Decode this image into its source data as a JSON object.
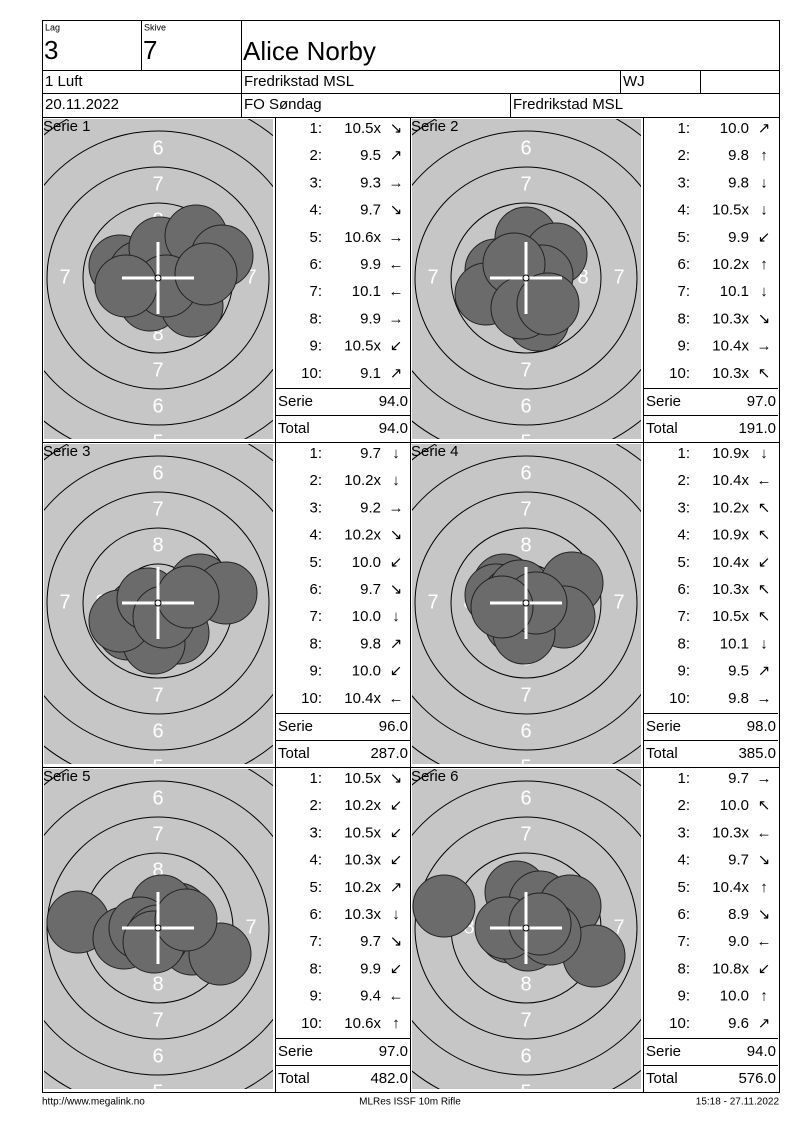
{
  "header": {
    "lag_label": "Lag",
    "lag": "3",
    "skive_label": "Skive",
    "skive": "7",
    "name": "Alice Norby",
    "class": "1 Luft",
    "club": "Fredrikstad MSL",
    "category": "WJ",
    "date": "20.11.2022",
    "event": "FO Søndag",
    "venue": "Fredrikstad MSL"
  },
  "target": {
    "ring_labels": [
      "8",
      "7",
      "6",
      "5"
    ]
  },
  "series": [
    {
      "title": "Serie 1",
      "shots": [
        {
          "n": "1:",
          "score": "10.5x",
          "arrow": "↘"
        },
        {
          "n": "2:",
          "score": "9.5",
          "arrow": "↗"
        },
        {
          "n": "3:",
          "score": "9.3",
          "arrow": "→"
        },
        {
          "n": "4:",
          "score": "9.7",
          "arrow": "↘"
        },
        {
          "n": "5:",
          "score": "10.6x",
          "arrow": "→"
        },
        {
          "n": "6:",
          "score": "9.9",
          "arrow": "←"
        },
        {
          "n": "7:",
          "score": "10.1",
          "arrow": "←"
        },
        {
          "n": "8:",
          "score": "9.9",
          "arrow": "→"
        },
        {
          "n": "9:",
          "score": "10.5x",
          "arrow": "↙"
        },
        {
          "n": "10:",
          "score": "9.1",
          "arrow": "↗"
        }
      ],
      "serie_label": "Serie",
      "serie": "94.0",
      "total_label": "Total",
      "total": "94.0"
    },
    {
      "title": "Serie 2",
      "shots": [
        {
          "n": "1:",
          "score": "10.0",
          "arrow": "↗"
        },
        {
          "n": "2:",
          "score": "9.8",
          "arrow": "↑"
        },
        {
          "n": "3:",
          "score": "9.8",
          "arrow": "↓"
        },
        {
          "n": "4:",
          "score": "10.5x",
          "arrow": "↓"
        },
        {
          "n": "5:",
          "score": "9.9",
          "arrow": "↙"
        },
        {
          "n": "6:",
          "score": "10.2x",
          "arrow": "↑"
        },
        {
          "n": "7:",
          "score": "10.1",
          "arrow": "↓"
        },
        {
          "n": "8:",
          "score": "10.3x",
          "arrow": "↘"
        },
        {
          "n": "9:",
          "score": "10.4x",
          "arrow": "→"
        },
        {
          "n": "10:",
          "score": "10.3x",
          "arrow": "↖"
        }
      ],
      "serie_label": "Serie",
      "serie": "97.0",
      "total_label": "Total",
      "total": "191.0"
    },
    {
      "title": "Serie 3",
      "shots": [
        {
          "n": "1:",
          "score": "9.7",
          "arrow": "↓"
        },
        {
          "n": "2:",
          "score": "10.2x",
          "arrow": "↓"
        },
        {
          "n": "3:",
          "score": "9.2",
          "arrow": "→"
        },
        {
          "n": "4:",
          "score": "10.2x",
          "arrow": "↘"
        },
        {
          "n": "5:",
          "score": "10.0",
          "arrow": "↙"
        },
        {
          "n": "6:",
          "score": "9.7",
          "arrow": "↘"
        },
        {
          "n": "7:",
          "score": "10.0",
          "arrow": "↓"
        },
        {
          "n": "8:",
          "score": "9.8",
          "arrow": "↗"
        },
        {
          "n": "9:",
          "score": "10.0",
          "arrow": "↙"
        },
        {
          "n": "10:",
          "score": "10.4x",
          "arrow": "←"
        }
      ],
      "serie_label": "Serie",
      "serie": "96.0",
      "total_label": "Total",
      "total": "287.0"
    },
    {
      "title": "Serie 4",
      "shots": [
        {
          "n": "1:",
          "score": "10.9x",
          "arrow": "↓"
        },
        {
          "n": "2:",
          "score": "10.4x",
          "arrow": "←"
        },
        {
          "n": "3:",
          "score": "10.2x",
          "arrow": "↖"
        },
        {
          "n": "4:",
          "score": "10.9x",
          "arrow": "↖"
        },
        {
          "n": "5:",
          "score": "10.4x",
          "arrow": "↙"
        },
        {
          "n": "6:",
          "score": "10.3x",
          "arrow": "↖"
        },
        {
          "n": "7:",
          "score": "10.5x",
          "arrow": "↖"
        },
        {
          "n": "8:",
          "score": "10.1",
          "arrow": "↓"
        },
        {
          "n": "9:",
          "score": "9.5",
          "arrow": "↗"
        },
        {
          "n": "10:",
          "score": "9.8",
          "arrow": "→"
        }
      ],
      "serie_label": "Serie",
      "serie": "98.0",
      "total_label": "Total",
      "total": "385.0"
    },
    {
      "title": "Serie 5",
      "shots": [
        {
          "n": "1:",
          "score": "10.5x",
          "arrow": "↘"
        },
        {
          "n": "2:",
          "score": "10.2x",
          "arrow": "↙"
        },
        {
          "n": "3:",
          "score": "10.5x",
          "arrow": "↙"
        },
        {
          "n": "4:",
          "score": "10.3x",
          "arrow": "↙"
        },
        {
          "n": "5:",
          "score": "10.2x",
          "arrow": "↗"
        },
        {
          "n": "6:",
          "score": "10.3x",
          "arrow": "↓"
        },
        {
          "n": "7:",
          "score": "9.7",
          "arrow": "↘"
        },
        {
          "n": "8:",
          "score": "9.9",
          "arrow": "↙"
        },
        {
          "n": "9:",
          "score": "9.4",
          "arrow": "←"
        },
        {
          "n": "10:",
          "score": "10.6x",
          "arrow": "↑"
        }
      ],
      "serie_label": "Serie",
      "serie": "97.0",
      "total_label": "Total",
      "total": "482.0"
    },
    {
      "title": "Serie 6",
      "shots": [
        {
          "n": "1:",
          "score": "9.7",
          "arrow": "→"
        },
        {
          "n": "2:",
          "score": "10.0",
          "arrow": "↖"
        },
        {
          "n": "3:",
          "score": "10.3x",
          "arrow": "←"
        },
        {
          "n": "4:",
          "score": "9.7",
          "arrow": "↘"
        },
        {
          "n": "5:",
          "score": "10.4x",
          "arrow": "↑"
        },
        {
          "n": "6:",
          "score": "8.9",
          "arrow": "↘"
        },
        {
          "n": "7:",
          "score": "9.0",
          "arrow": "←"
        },
        {
          "n": "8:",
          "score": "10.8x",
          "arrow": "↙"
        },
        {
          "n": "9:",
          "score": "10.0",
          "arrow": "↑"
        },
        {
          "n": "10:",
          "score": "9.6",
          "arrow": "↗"
        }
      ],
      "serie_label": "Serie",
      "serie": "94.0",
      "total_label": "Total",
      "total": "576.0"
    }
  ],
  "footer": {
    "left": "http://www.megalink.no",
    "center": "MLRes ISSF 10m Rifle",
    "right": "15:18 - 27.11.2022"
  }
}
